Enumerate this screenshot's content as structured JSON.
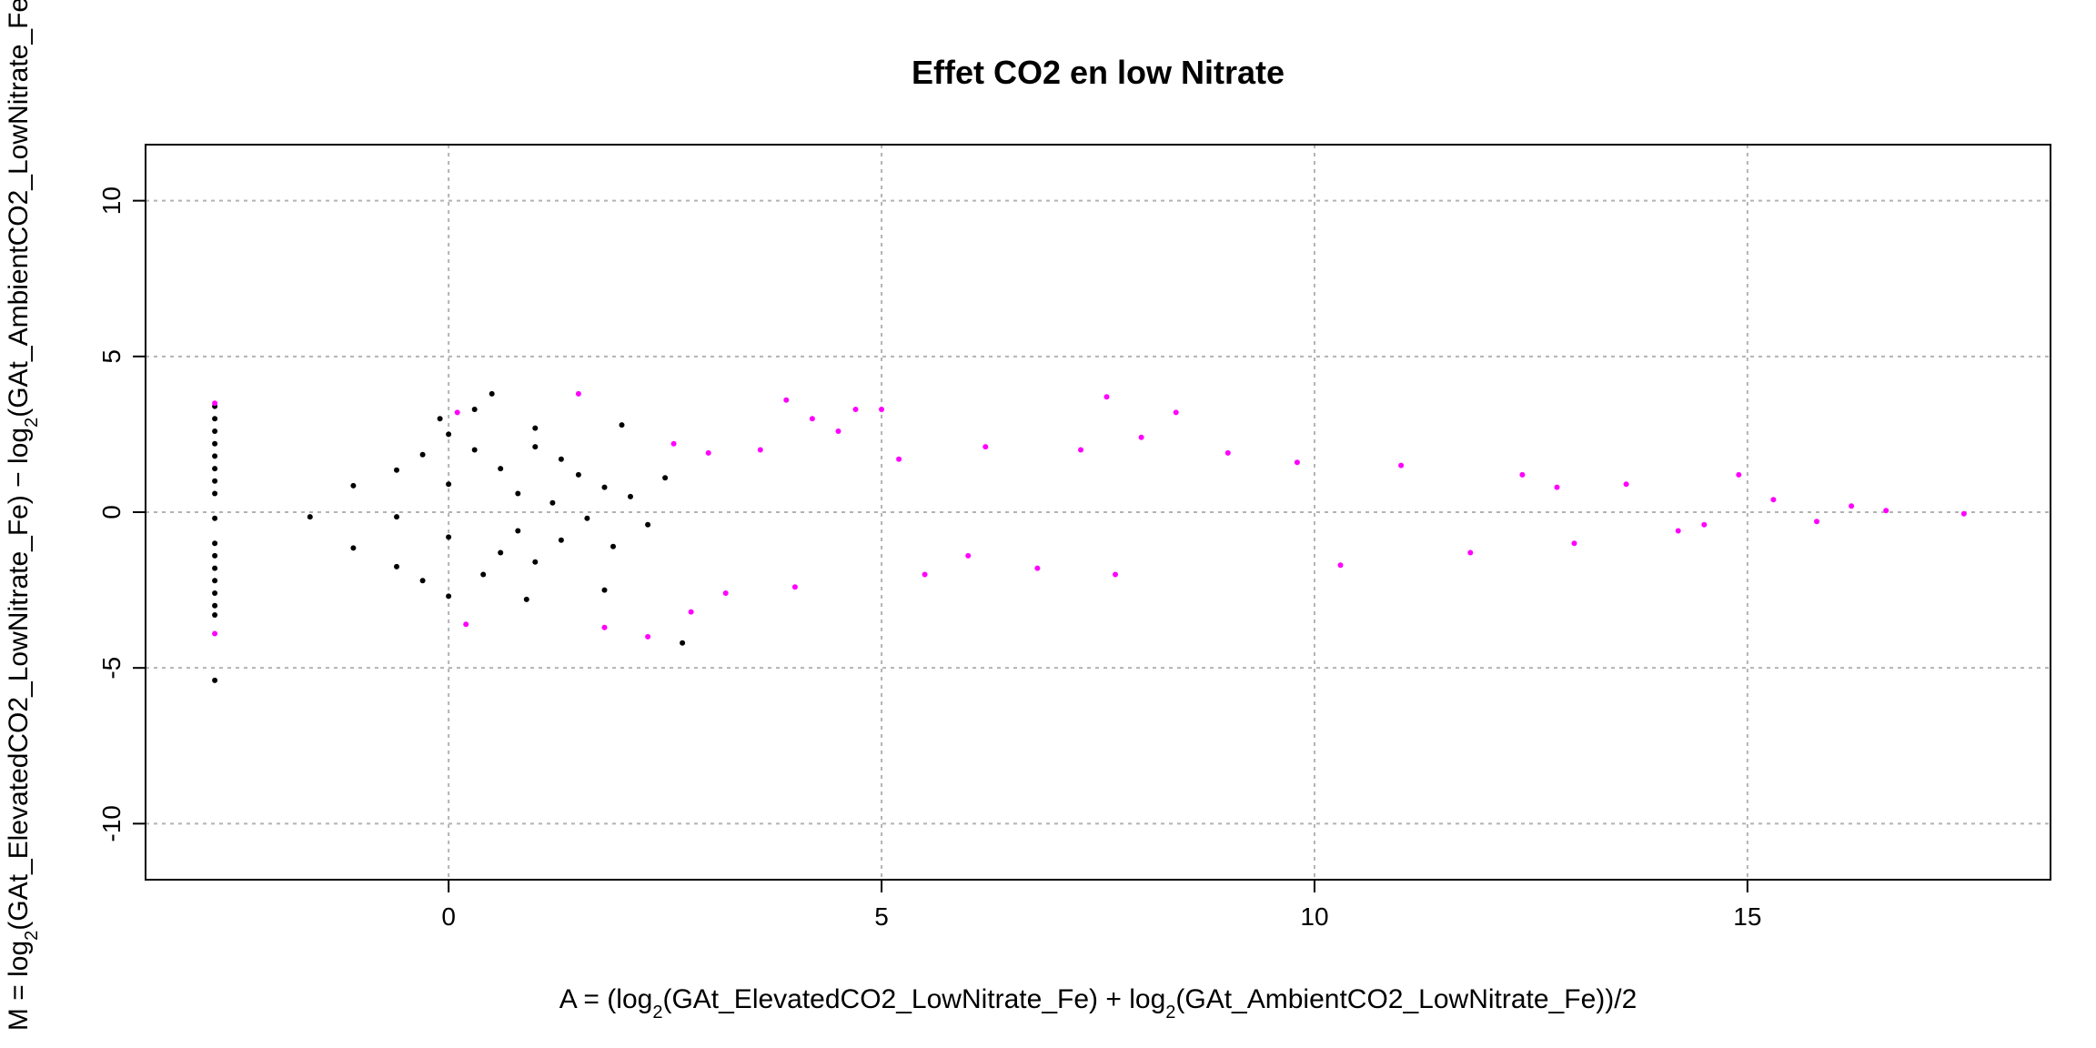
{
  "chart_data": {
    "type": "scatter",
    "title": "Effet CO2 en low Nitrate",
    "xlabel": {
      "prefix": "A = (",
      "part1": "log",
      "sub1": "2",
      "arg1": "(GAt_ElevatedCO2_LowNitrate_Fe)",
      "op": " + ",
      "part2": "log",
      "sub2": "2",
      "arg2": "(GAt_AmbientCO2_LowNitrate_Fe)",
      "suffix": ")/2"
    },
    "ylabel": {
      "prefix": "M = ",
      "part1": "log",
      "sub1": "2",
      "arg1": "(GAt_ElevatedCO2_LowNitrate_Fe)",
      "op": " − ",
      "part2": "log",
      "sub2": "2",
      "arg2": "(GAt_AmbientCO2_LowNitrate_Fe)"
    },
    "xlim": [
      -3.5,
      18.5
    ],
    "ylim": [
      -11.8,
      11.8
    ],
    "xticks": [
      0,
      5,
      10,
      15
    ],
    "xtick_labels": [
      "0",
      "5",
      "10",
      "15"
    ],
    "yticks": [
      -10,
      -5,
      0,
      5,
      10
    ],
    "ytick_labels": [
      "-10",
      "-5",
      "0",
      "5",
      "10"
    ],
    "grid": true,
    "point_colors": {
      "nonsignificant": "#000000",
      "significant": "#ff00ff"
    },
    "series": [
      {
        "color": "#000000",
        "points": [
          [
            -2.7,
            3.4
          ],
          [
            -2.7,
            3.0
          ],
          [
            -2.7,
            2.6
          ],
          [
            -2.7,
            2.2
          ],
          [
            -2.7,
            1.8
          ],
          [
            -2.7,
            1.4
          ],
          [
            -2.7,
            1.0
          ],
          [
            -2.7,
            0.6
          ],
          [
            -2.7,
            -0.2
          ],
          [
            -2.7,
            -1.0
          ],
          [
            -2.7,
            -1.4
          ],
          [
            -2.7,
            -1.8
          ],
          [
            -2.7,
            -2.2
          ],
          [
            -2.7,
            -2.6
          ],
          [
            -2.7,
            -3.0
          ],
          [
            -2.7,
            -3.3
          ],
          [
            -2.7,
            -5.4
          ],
          [
            -1.6,
            -0.15
          ],
          [
            -1.1,
            0.85
          ],
          [
            -1.1,
            -1.15
          ],
          [
            -0.6,
            1.35
          ],
          [
            -0.6,
            -1.75
          ],
          [
            -0.6,
            -0.15
          ],
          [
            -0.3,
            1.85
          ],
          [
            -0.3,
            -2.2
          ],
          [
            0.0,
            2.5
          ],
          [
            0.0,
            -2.7
          ],
          [
            0.0,
            0.9
          ],
          [
            0.0,
            -0.8
          ],
          [
            -0.1,
            3.0
          ],
          [
            0.3,
            3.3
          ],
          [
            0.5,
            3.8
          ],
          [
            0.3,
            2.0
          ],
          [
            0.4,
            -2.0
          ],
          [
            0.6,
            1.4
          ],
          [
            0.6,
            -1.3
          ],
          [
            0.8,
            0.6
          ],
          [
            0.8,
            -0.6
          ],
          [
            1.0,
            2.1
          ],
          [
            1.0,
            -1.6
          ],
          [
            1.2,
            0.3
          ],
          [
            1.3,
            -0.9
          ],
          [
            1.5,
            1.2
          ],
          [
            1.6,
            -0.2
          ],
          [
            1.8,
            0.8
          ],
          [
            1.9,
            -1.1
          ],
          [
            2.1,
            0.5
          ],
          [
            2.3,
            -0.4
          ],
          [
            2.7,
            -4.2
          ],
          [
            2.5,
            1.1
          ],
          [
            1.0,
            2.7
          ],
          [
            0.9,
            -2.8
          ],
          [
            1.3,
            1.7
          ],
          [
            1.8,
            -2.5
          ],
          [
            2.0,
            2.8
          ]
        ]
      },
      {
        "color": "#ff00ff",
        "points": [
          [
            -2.7,
            -3.9
          ],
          [
            -2.7,
            3.5
          ],
          [
            0.2,
            -3.6
          ],
          [
            0.1,
            3.2
          ],
          [
            1.5,
            3.8
          ],
          [
            1.8,
            -3.7
          ],
          [
            2.3,
            -4.0
          ],
          [
            2.6,
            2.2
          ],
          [
            2.8,
            -3.2
          ],
          [
            3.6,
            2.0
          ],
          [
            3.9,
            3.6
          ],
          [
            4.2,
            3.0
          ],
          [
            4.5,
            2.6
          ],
          [
            4.7,
            3.3
          ],
          [
            5.0,
            3.3
          ],
          [
            7.6,
            3.7
          ],
          [
            8.4,
            3.2
          ],
          [
            8.0,
            2.4
          ],
          [
            5.5,
            -2.0
          ],
          [
            6.2,
            2.1
          ],
          [
            6.8,
            -1.8
          ],
          [
            7.3,
            2.0
          ],
          [
            7.7,
            -2.0
          ],
          [
            9.0,
            1.9
          ],
          [
            9.8,
            1.6
          ],
          [
            10.3,
            -1.7
          ],
          [
            11.0,
            1.5
          ],
          [
            11.8,
            -1.3
          ],
          [
            12.4,
            1.2
          ],
          [
            13.0,
            -1.0
          ],
          [
            13.6,
            0.9
          ],
          [
            14.2,
            -0.6
          ],
          [
            14.9,
            1.2
          ],
          [
            15.3,
            0.4
          ],
          [
            15.8,
            -0.3
          ],
          [
            16.2,
            0.2
          ],
          [
            16.6,
            0.05
          ],
          [
            17.5,
            -0.05
          ],
          [
            3.2,
            -2.6
          ],
          [
            4.0,
            -2.4
          ],
          [
            3.0,
            1.9
          ],
          [
            6.0,
            -1.4
          ],
          [
            5.2,
            1.7
          ],
          [
            12.8,
            0.8
          ],
          [
            14.5,
            -0.4
          ]
        ]
      }
    ]
  }
}
